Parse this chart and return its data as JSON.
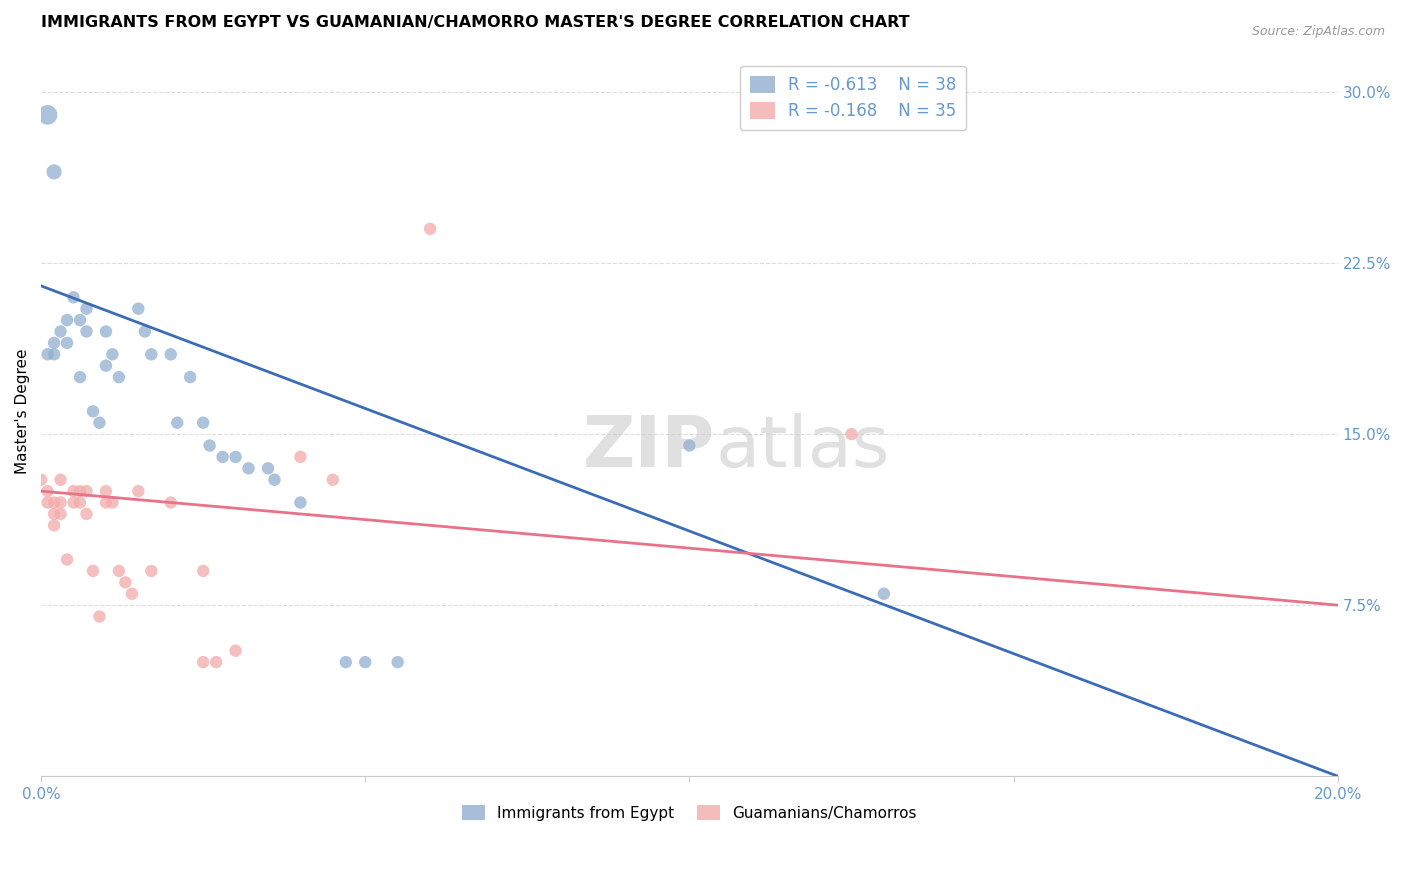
{
  "title": "IMMIGRANTS FROM EGYPT VS GUAMANIAN/CHAMORRO MASTER'S DEGREE CORRELATION CHART",
  "source": "Source: ZipAtlas.com",
  "ylabel": "Master's Degree",
  "legend_blue_r": "-0.613",
  "legend_blue_n": "38",
  "legend_pink_r": "-0.168",
  "legend_pink_n": "35",
  "legend_blue_label": "Immigrants from Egypt",
  "legend_pink_label": "Guamanians/Chamorros",
  "watermark_zip": "ZIP",
  "watermark_atlas": "atlas",
  "blue_color": "#92AECF",
  "pink_color": "#F4AAAA",
  "blue_line_color": "#3A6DB5",
  "pink_line_color": "#E8728A",
  "blue_points": [
    [
      0.001,
      0.29
    ],
    [
      0.002,
      0.265
    ],
    [
      0.001,
      0.185
    ],
    [
      0.002,
      0.19
    ],
    [
      0.002,
      0.185
    ],
    [
      0.003,
      0.195
    ],
    [
      0.004,
      0.19
    ],
    [
      0.004,
      0.2
    ],
    [
      0.005,
      0.21
    ],
    [
      0.006,
      0.2
    ],
    [
      0.006,
      0.175
    ],
    [
      0.007,
      0.205
    ],
    [
      0.007,
      0.195
    ],
    [
      0.008,
      0.16
    ],
    [
      0.009,
      0.155
    ],
    [
      0.01,
      0.18
    ],
    [
      0.01,
      0.195
    ],
    [
      0.011,
      0.185
    ],
    [
      0.012,
      0.175
    ],
    [
      0.015,
      0.205
    ],
    [
      0.016,
      0.195
    ],
    [
      0.017,
      0.185
    ],
    [
      0.02,
      0.185
    ],
    [
      0.021,
      0.155
    ],
    [
      0.023,
      0.175
    ],
    [
      0.025,
      0.155
    ],
    [
      0.026,
      0.145
    ],
    [
      0.028,
      0.14
    ],
    [
      0.03,
      0.14
    ],
    [
      0.032,
      0.135
    ],
    [
      0.035,
      0.135
    ],
    [
      0.036,
      0.13
    ],
    [
      0.04,
      0.12
    ],
    [
      0.047,
      0.05
    ],
    [
      0.05,
      0.05
    ],
    [
      0.055,
      0.05
    ],
    [
      0.1,
      0.145
    ],
    [
      0.13,
      0.08
    ]
  ],
  "pink_points": [
    [
      0.0,
      0.13
    ],
    [
      0.001,
      0.12
    ],
    [
      0.001,
      0.125
    ],
    [
      0.002,
      0.12
    ],
    [
      0.002,
      0.115
    ],
    [
      0.002,
      0.11
    ],
    [
      0.003,
      0.13
    ],
    [
      0.003,
      0.12
    ],
    [
      0.003,
      0.115
    ],
    [
      0.004,
      0.095
    ],
    [
      0.005,
      0.12
    ],
    [
      0.005,
      0.125
    ],
    [
      0.006,
      0.12
    ],
    [
      0.006,
      0.125
    ],
    [
      0.007,
      0.115
    ],
    [
      0.007,
      0.125
    ],
    [
      0.008,
      0.09
    ],
    [
      0.009,
      0.07
    ],
    [
      0.01,
      0.125
    ],
    [
      0.01,
      0.12
    ],
    [
      0.011,
      0.12
    ],
    [
      0.012,
      0.09
    ],
    [
      0.013,
      0.085
    ],
    [
      0.014,
      0.08
    ],
    [
      0.015,
      0.125
    ],
    [
      0.017,
      0.09
    ],
    [
      0.02,
      0.12
    ],
    [
      0.025,
      0.09
    ],
    [
      0.025,
      0.05
    ],
    [
      0.027,
      0.05
    ],
    [
      0.03,
      0.055
    ],
    [
      0.04,
      0.14
    ],
    [
      0.045,
      0.13
    ],
    [
      0.06,
      0.24
    ],
    [
      0.125,
      0.15
    ]
  ],
  "xlim": [
    0.0,
    0.2
  ],
  "ylim": [
    0.0,
    0.32
  ],
  "x_ticks": [
    0.0,
    0.05,
    0.1,
    0.15,
    0.2
  ],
  "y_ticks_right": [
    0.075,
    0.15,
    0.225,
    0.3
  ],
  "y_tick_labels_right": [
    "7.5%",
    "15.0%",
    "22.5%",
    "30.0%"
  ],
  "grid_color": "#DDDDDD",
  "tick_color": "#6699CC"
}
